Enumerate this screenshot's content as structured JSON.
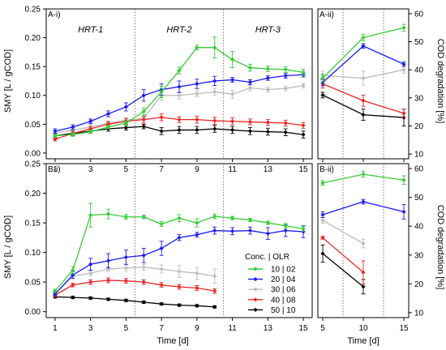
{
  "figure": {
    "y_label_left": "SMY [L / gCOD]",
    "y_label_right": "COD degradation [%]",
    "x_label": "Time [d]",
    "legend_title": "Conc. | OLR",
    "colors": {
      "10|02": "#33cc33",
      "20|04": "#1a1aee",
      "30|06": "#bcbcbc",
      "40|08": "#ee2222",
      "50|10": "#000000"
    }
  },
  "chart_data": [
    {
      "id": "A-i",
      "type": "line",
      "title": "A-i)",
      "xlabel": "",
      "ylabel": "SMY [L / gCOD]",
      "xlim": [
        0.5,
        15.5
      ],
      "ylim": [
        -0.01,
        0.25
      ],
      "x_ticks": [
        "1",
        "3",
        "5",
        "7",
        "9",
        "11",
        "13",
        "15"
      ],
      "y_ticks": [
        "0.00",
        "0.05",
        "0.10",
        "0.15",
        "0.20",
        "0.25"
      ],
      "phase_lines": [
        5.5,
        10.5
      ],
      "phase_labels": [
        {
          "x": 3,
          "label": "HRT-1"
        },
        {
          "x": 8,
          "label": "HRT-2"
        },
        {
          "x": 13,
          "label": "HRT-3"
        }
      ],
      "x": [
        1,
        2,
        3,
        4,
        5,
        6,
        7,
        8,
        9,
        10,
        11,
        12,
        13,
        14,
        15
      ],
      "series": [
        {
          "key": "10|02",
          "values": [
            0.03,
            0.032,
            0.037,
            0.045,
            0.052,
            0.072,
            0.106,
            0.143,
            0.183,
            0.183,
            0.162,
            0.148,
            0.146,
            0.145,
            0.14
          ],
          "errors": [
            0.003,
            0.003,
            0.003,
            0.003,
            0.004,
            0.006,
            0.01,
            0.006,
            0.004,
            0.018,
            0.014,
            0.006,
            0.005,
            0.005,
            0.005
          ]
        },
        {
          "key": "20|04",
          "values": [
            0.038,
            0.045,
            0.055,
            0.068,
            0.08,
            0.1,
            0.11,
            0.115,
            0.12,
            0.125,
            0.127,
            0.123,
            0.13,
            0.134,
            0.136
          ],
          "errors": [
            0.004,
            0.004,
            0.004,
            0.005,
            0.007,
            0.01,
            0.01,
            0.01,
            0.008,
            0.008,
            0.004,
            0.004,
            0.004,
            0.004,
            0.004
          ]
        },
        {
          "key": "30|06",
          "values": [
            0.035,
            0.04,
            0.045,
            0.052,
            0.057,
            0.06,
            0.1,
            0.1,
            0.103,
            0.106,
            0.102,
            0.113,
            0.11,
            0.112,
            0.117
          ],
          "errors": [
            0.004,
            0.004,
            0.004,
            0.004,
            0.004,
            0.004,
            0.008,
            0.006,
            0.005,
            0.006,
            0.007,
            0.005,
            0.004,
            0.004,
            0.004
          ]
        },
        {
          "key": "40|08",
          "values": [
            0.024,
            0.034,
            0.042,
            0.05,
            0.055,
            0.058,
            0.062,
            0.058,
            0.058,
            0.056,
            0.055,
            0.054,
            0.053,
            0.052,
            0.048
          ],
          "errors": [
            0.003,
            0.004,
            0.004,
            0.004,
            0.005,
            0.006,
            0.006,
            0.005,
            0.006,
            0.006,
            0.006,
            0.005,
            0.005,
            0.005,
            0.005
          ]
        },
        {
          "key": "50|10",
          "values": [
            0.03,
            0.034,
            0.038,
            0.042,
            0.044,
            0.046,
            0.038,
            0.04,
            0.04,
            0.042,
            0.04,
            0.038,
            0.037,
            0.036,
            0.032
          ],
          "errors": [
            0.004,
            0.004,
            0.004,
            0.004,
            0.004,
            0.004,
            0.006,
            0.006,
            0.006,
            0.006,
            0.006,
            0.006,
            0.006,
            0.006,
            0.006
          ]
        }
      ]
    },
    {
      "id": "A-ii",
      "type": "line",
      "title": "A-ii)",
      "ylabel": "COD degradation [%]",
      "xlim": [
        4.4,
        15.6
      ],
      "ylim": [
        8.3,
        61.7
      ],
      "x_ticks": [
        "5",
        "10",
        "15"
      ],
      "y_ticks": [
        "10",
        "20",
        "30",
        "40",
        "50",
        "60"
      ],
      "phase_lines": [
        7.5,
        12.5
      ],
      "x": [
        5,
        10,
        15
      ],
      "series": [
        {
          "key": "10|02",
          "values": [
            37,
            51.5,
            55
          ],
          "errors": [
            1.5,
            1.2,
            1.2
          ]
        },
        {
          "key": "20|04",
          "values": [
            35.5,
            48.5,
            42
          ],
          "errors": [
            1.2,
            0.8,
            0.8
          ]
        },
        {
          "key": "30|06",
          "values": [
            38,
            37,
            40
          ],
          "errors": [
            1.5,
            2.5,
            1.2
          ]
        },
        {
          "key": "40|08",
          "values": [
            35,
            29,
            24.5
          ],
          "errors": [
            1.5,
            2.0,
            1.5
          ]
        },
        {
          "key": "50|10",
          "values": [
            31,
            24,
            23
          ],
          "errors": [
            1.0,
            2.0,
            3.0
          ]
        }
      ]
    },
    {
      "id": "B-i",
      "type": "line",
      "title": "B-i)",
      "xlabel": "Time [d]",
      "ylabel": "SMY [L / gCOD]",
      "xlim": [
        0.5,
        15.5
      ],
      "ylim": [
        -0.01,
        0.25
      ],
      "x_ticks": [
        "1",
        "3",
        "5",
        "7",
        "9",
        "11",
        "13",
        "15"
      ],
      "y_ticks": [
        "0.00",
        "0.05",
        "0.10",
        "0.15",
        "0.20",
        "0.25"
      ],
      "phase_lines": [
        5.5,
        10.5
      ],
      "legend": [
        "10 | 02",
        "20 | 04",
        "30 | 06",
        "40 | 08",
        "50 | 10"
      ],
      "legend_position": "bottom-center",
      "series": [
        {
          "key": "10|02",
          "x": [
            1,
            2,
            3,
            4,
            5,
            6,
            7,
            8,
            9,
            10,
            11,
            12,
            13,
            14,
            15
          ],
          "values": [
            0.035,
            0.07,
            0.163,
            0.165,
            0.16,
            0.16,
            0.148,
            0.158,
            0.15,
            0.161,
            0.158,
            0.155,
            0.15,
            0.145,
            0.14
          ],
          "errors": [
            0.003,
            0.006,
            0.02,
            0.008,
            0.004,
            0.003,
            0.004,
            0.006,
            0.007,
            0.004,
            0.003,
            0.003,
            0.003,
            0.004,
            0.004
          ]
        },
        {
          "key": "20|04",
          "x": [
            1,
            2,
            3,
            4,
            5,
            6,
            7,
            8,
            9,
            10,
            11,
            12,
            13,
            14,
            15
          ],
          "values": [
            0.03,
            0.062,
            0.08,
            0.086,
            0.092,
            0.095,
            0.107,
            0.125,
            0.13,
            0.137,
            0.136,
            0.137,
            0.132,
            0.137,
            0.135
          ],
          "errors": [
            0.003,
            0.006,
            0.01,
            0.012,
            0.012,
            0.012,
            0.012,
            0.005,
            0.004,
            0.006,
            0.006,
            0.006,
            0.01,
            0.01,
            0.01
          ]
        },
        {
          "key": "30|06",
          "x": [
            1,
            2,
            3,
            4,
            5,
            6,
            7,
            8,
            9,
            10
          ],
          "values": [
            0.03,
            0.06,
            0.065,
            0.072,
            0.074,
            0.075,
            0.072,
            0.068,
            0.065,
            0.06
          ],
          "errors": [
            0.003,
            0.004,
            0.004,
            0.004,
            0.005,
            0.005,
            0.007,
            0.01,
            0.01,
            0.012
          ]
        },
        {
          "key": "40|08",
          "x": [
            1,
            2,
            3,
            4,
            5,
            6,
            7,
            8,
            9,
            10
          ],
          "values": [
            0.028,
            0.045,
            0.05,
            0.053,
            0.052,
            0.05,
            0.045,
            0.042,
            0.04,
            0.035
          ],
          "errors": [
            0.003,
            0.003,
            0.004,
            0.004,
            0.004,
            0.004,
            0.004,
            0.004,
            0.004,
            0.004
          ]
        },
        {
          "key": "50|10",
          "x": [
            1,
            2,
            3,
            4,
            5,
            6,
            7,
            8,
            9,
            10
          ],
          "values": [
            0.025,
            0.024,
            0.023,
            0.021,
            0.019,
            0.016,
            0.013,
            0.011,
            0.01,
            0.008
          ],
          "errors": [
            0.002,
            0.002,
            0.002,
            0.002,
            0.002,
            0.002,
            0.002,
            0.002,
            0.002,
            0.002
          ]
        }
      ]
    },
    {
      "id": "B-ii",
      "type": "line",
      "title": "B-ii)",
      "xlabel": "Time [d]",
      "ylabel": "COD degradation [%]",
      "xlim": [
        4.4,
        15.6
      ],
      "ylim": [
        8.3,
        61.7
      ],
      "x_ticks": [
        "5",
        "10",
        "15"
      ],
      "y_ticks": [
        "10",
        "20",
        "30",
        "40",
        "50",
        "60"
      ],
      "phase_lines": [
        7.5,
        12.5
      ],
      "series": [
        {
          "key": "10|02",
          "x": [
            5,
            10,
            15
          ],
          "values": [
            55,
            58,
            56
          ],
          "errors": [
            0.8,
            1.0,
            1.5
          ]
        },
        {
          "key": "20|04",
          "x": [
            5,
            10,
            15
          ],
          "values": [
            44,
            48.5,
            45
          ],
          "errors": [
            1.0,
            0.8,
            2.5
          ]
        },
        {
          "key": "30|06",
          "x": [
            5,
            10
          ],
          "values": [
            42,
            34
          ],
          "errors": [
            1.0,
            1.5
          ]
        },
        {
          "key": "40|08",
          "x": [
            5,
            10
          ],
          "values": [
            36,
            24
          ],
          "errors": [
            0.5,
            4.0
          ]
        },
        {
          "key": "50|10",
          "x": [
            5,
            10
          ],
          "values": [
            30.5,
            19
          ],
          "errors": [
            3.0,
            2.5
          ]
        }
      ]
    }
  ]
}
